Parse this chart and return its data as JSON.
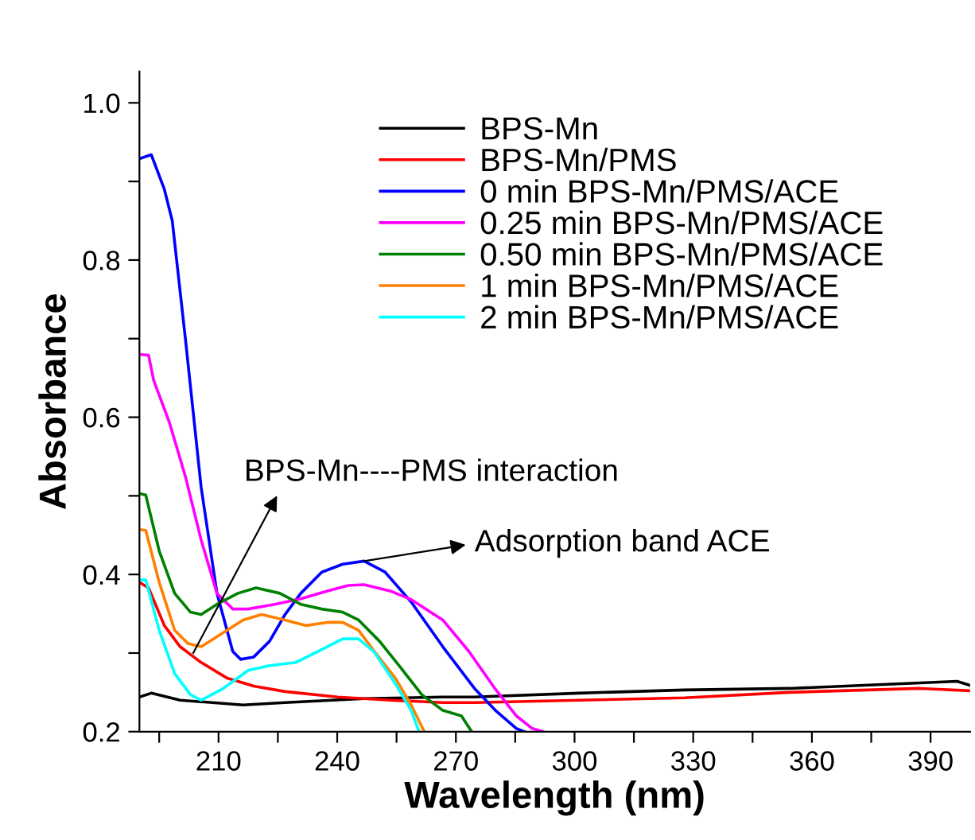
{
  "chart_data": {
    "type": "line",
    "xlabel": "Wavelength (nm)",
    "ylabel": "Absorbance",
    "xlim": [
      190,
      400
    ],
    "ylim": [
      0.2,
      1.04
    ],
    "xticks": [
      {
        "value": 195,
        "label": null
      },
      210,
      {
        "value": 225,
        "label": null
      },
      240,
      {
        "value": 255,
        "label": null
      },
      270,
      {
        "value": 285,
        "label": null
      },
      300,
      {
        "value": 315,
        "label": null
      },
      330,
      {
        "value": 345,
        "label": null
      },
      360,
      {
        "value": 375,
        "label": null
      },
      390
    ],
    "yticks": [
      0.2,
      {
        "value": 0.3,
        "label": null
      },
      0.4,
      {
        "value": 0.5,
        "label": null
      },
      0.6,
      {
        "value": 0.7,
        "label": null
      },
      0.8,
      {
        "value": 0.9,
        "label": null
      },
      {
        "value": 1.0,
        "label": "1.0"
      }
    ],
    "grid": false,
    "legend": "top right",
    "line_style": "solid",
    "marker": "none",
    "series": [
      {
        "name": "BPS-Mn",
        "color": "#000000",
        "x": [
          190,
          193,
          200.3,
          216.2,
          226.8,
          246.8,
          266.7,
          274.7,
          301.2,
          327.8,
          354.3,
          387.4,
          396.7,
          400
        ],
        "values": [
          0.244,
          0.249,
          0.24,
          0.234,
          0.237,
          0.242,
          0.244,
          0.244,
          0.249,
          0.253,
          0.255,
          0.262,
          0.264,
          0.259
        ]
      },
      {
        "name": "BPS-Mn/PMS",
        "color": "#ff0000",
        "x": [
          190,
          192.3,
          196.3,
          200.3,
          205.6,
          212.2,
          218.9,
          226.8,
          240.1,
          253.4,
          266.7,
          274.7,
          301.2,
          327.8,
          354.3,
          387.4,
          400
        ],
        "values": [
          0.39,
          0.383,
          0.335,
          0.308,
          0.288,
          0.268,
          0.258,
          0.251,
          0.244,
          0.24,
          0.237,
          0.237,
          0.24,
          0.243,
          0.25,
          0.255,
          0.252
        ]
      },
      {
        "name": "0 min BPS-Mn/PMS/ACE",
        "color": "#0000ff",
        "x": [
          190,
          193,
          196.3,
          198.3,
          201.6,
          205.6,
          209.6,
          213.6,
          215.6,
          218.9,
          222.9,
          226.8,
          230.8,
          236.1,
          241.4,
          246.8,
          252.1,
          258.7,
          266.7,
          274.7,
          280,
          285.3,
          287.3
        ],
        "values": [
          0.929,
          0.934,
          0.89,
          0.85,
          0.701,
          0.511,
          0.376,
          0.302,
          0.292,
          0.295,
          0.315,
          0.349,
          0.376,
          0.403,
          0.413,
          0.417,
          0.403,
          0.365,
          0.308,
          0.255,
          0.227,
          0.204,
          0.2
        ]
      },
      {
        "name": "0.25 min BPS-Mn/PMS/ACE",
        "color": "#ff00ff",
        "x": [
          190,
          192.3,
          193.6,
          197.6,
          201.6,
          205.6,
          209.6,
          213.6,
          217.5,
          224.2,
          230.8,
          237.5,
          242.8,
          246.8,
          253.4,
          258.7,
          266.7,
          273.3,
          280,
          285.3,
          289.3,
          292
        ],
        "values": [
          0.68,
          0.679,
          0.647,
          0.593,
          0.525,
          0.444,
          0.376,
          0.356,
          0.356,
          0.362,
          0.369,
          0.379,
          0.386,
          0.387,
          0.379,
          0.368,
          0.342,
          0.302,
          0.254,
          0.22,
          0.204,
          0.2
        ]
      },
      {
        "name": "0.50 min BPS-Mn/PMS/ACE",
        "color": "#008000",
        "x": [
          190,
          191.6,
          195,
          198.9,
          202.9,
          205.6,
          209.6,
          214.9,
          219.5,
          225.5,
          230.8,
          236.1,
          241.4,
          245.4,
          250.7,
          256.1,
          261.4,
          266.7,
          271.4,
          274
        ],
        "values": [
          0.503,
          0.501,
          0.43,
          0.376,
          0.352,
          0.349,
          0.362,
          0.376,
          0.383,
          0.376,
          0.362,
          0.356,
          0.352,
          0.342,
          0.315,
          0.281,
          0.247,
          0.227,
          0.22,
          0.2
        ]
      },
      {
        "name": "1 min BPS-Mn/PMS/ACE",
        "color": "#ff8000",
        "x": [
          190,
          191.6,
          195,
          198.9,
          202.3,
          205.6,
          210.9,
          216.2,
          220.9,
          226.8,
          232.2,
          237.5,
          241.4,
          245.4,
          249.4,
          254.7,
          258.7,
          262
        ],
        "values": [
          0.457,
          0.456,
          0.39,
          0.329,
          0.312,
          0.308,
          0.325,
          0.342,
          0.349,
          0.342,
          0.335,
          0.339,
          0.339,
          0.329,
          0.302,
          0.268,
          0.234,
          0.2
        ]
      },
      {
        "name": "2 min BPS-Mn/PMS/ACE",
        "color": "#00ffff",
        "x": [
          190,
          191.6,
          195,
          198.9,
          202.9,
          205.6,
          210.9,
          217.5,
          222.9,
          229.5,
          234.8,
          241.4,
          245.4,
          249.4,
          254.7,
          258.7,
          260.7
        ],
        "values": [
          0.393,
          0.393,
          0.329,
          0.274,
          0.247,
          0.24,
          0.254,
          0.278,
          0.284,
          0.288,
          0.301,
          0.318,
          0.318,
          0.301,
          0.261,
          0.227,
          0.2
        ]
      }
    ],
    "annotations": [
      {
        "text": "BPS-Mn----PMS interaction",
        "x": 203.6,
        "y": 0.3
      },
      {
        "text": "Adsorption band ACE",
        "x": 246.8,
        "y": 0.417
      }
    ]
  }
}
